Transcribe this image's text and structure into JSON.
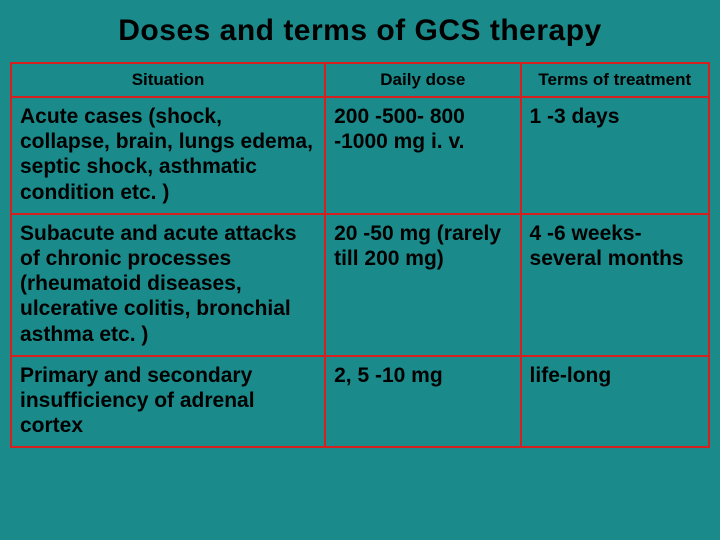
{
  "title": "Doses and terms of GCS therapy",
  "table": {
    "columns": [
      "Situation",
      "Daily dose",
      "Terms of treatment"
    ],
    "rows": [
      {
        "situation": "Acute cases (shock, collapse, brain, lungs edema, septic shock, asthmatic condition etc. )",
        "dose": "200 -500- 800 -1000 mg i. v.",
        "terms": "1 -3 days"
      },
      {
        "situation": "Subacute and acute attacks of chronic processes (rheumatoid diseases, ulcerative colitis, bronchial asthma etc. )",
        "dose": "20 -50 mg (rarely till 200 mg)",
        "terms": "4 -6 weeks- several months"
      },
      {
        "situation": "Primary and secondary insufficiency of adrenal cortex",
        "dose": "2, 5 -10 mg",
        "terms": "life-long"
      }
    ],
    "colors": {
      "background": "#1a8a8a",
      "border": "#d62020",
      "text": "#000000"
    },
    "header_fontsize": 17,
    "cell_fontsize": 21,
    "title_fontsize": 30
  }
}
